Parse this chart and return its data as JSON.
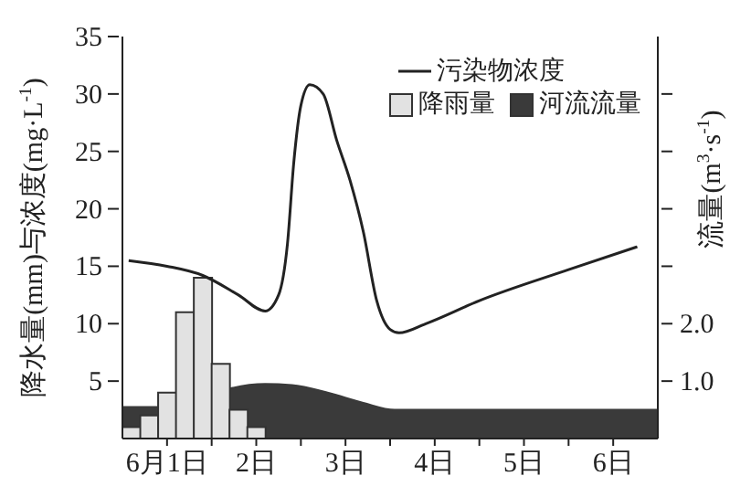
{
  "chart_data": {
    "type": "line",
    "ylabel": "降水量(mm)与浓度(mg·L$^{-1}$)",
    "y2label": "流量(m$^{3}$·s$^{-1}$)",
    "xlim": [
      0,
      6
    ],
    "xticks": [
      {
        "value": 0.5,
        "label": "6月1日"
      },
      {
        "value": 1,
        "label": null
      },
      {
        "value": 1.5,
        "label": "2日"
      },
      {
        "value": 2,
        "label": null
      },
      {
        "value": 2.5,
        "label": "3日"
      },
      {
        "value": 3,
        "label": null
      },
      {
        "value": 3.5,
        "label": "4日"
      },
      {
        "value": 4,
        "label": null
      },
      {
        "value": 4.5,
        "label": "5日"
      },
      {
        "value": 5,
        "label": null
      },
      {
        "value": 5.5,
        "label": "6日"
      }
    ],
    "ylim": [
      0,
      35
    ],
    "yticks": [
      5,
      10,
      15,
      20,
      25,
      30,
      35
    ],
    "y2lim": [
      0,
      7
    ],
    "y2ticks": [
      {
        "value": 1,
        "label": "1.0"
      },
      {
        "value": 2,
        "label": "2.0"
      },
      {
        "value": 3,
        "label": null
      },
      {
        "value": 4,
        "label": null
      },
      {
        "value": 5,
        "label": null
      },
      {
        "value": 6,
        "label": null
      }
    ],
    "legend": "top right",
    "grid": false,
    "series": [
      {
        "name": "污染物浓度",
        "color": "#222222",
        "x": [
          0.07,
          0.5,
          0.9,
          1.3,
          1.6,
          1.75,
          1.85,
          1.92,
          2.0,
          2.1,
          2.25,
          2.4,
          2.55,
          2.7,
          2.85,
          3.0,
          3.1,
          3.4,
          4.0,
          5.0,
          5.77
        ],
        "values": [
          15.5,
          15,
          14.2,
          12.5,
          11.1,
          12.5,
          17,
          24,
          29,
          30.8,
          30,
          26,
          22.5,
          18,
          12,
          9.5,
          9.2,
          10,
          12,
          14.7,
          16.7
        ]
      },
      {
        "name": "降雨量",
        "type": "histogram",
        "color": "#e2e2e2",
        "bins": [
          0,
          0.2,
          0.4,
          0.6,
          0.8,
          1.0,
          1.2,
          1.4,
          1.6
        ],
        "values": [
          1,
          2,
          4,
          11,
          14,
          6.5,
          2.5,
          1
        ]
      },
      {
        "name": "河流流量",
        "type": "area",
        "axis": "y2",
        "color": "#3a3a3a",
        "x": [
          0,
          0.4,
          0.8,
          1.2,
          1.6,
          1.9,
          2.3,
          2.7,
          3.05,
          4,
          5,
          6
        ],
        "values": [
          0.55,
          0.55,
          0.65,
          0.87,
          0.95,
          0.93,
          0.8,
          0.62,
          0.5,
          0.5,
          0.5,
          0.5
        ]
      }
    ]
  }
}
